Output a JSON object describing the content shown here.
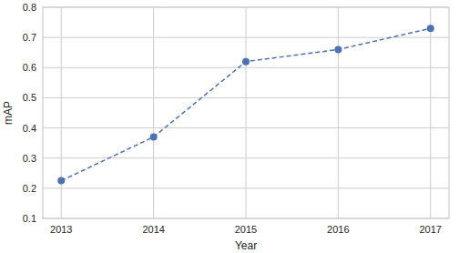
{
  "chart_data": {
    "type": "line",
    "x_label": "Year",
    "y_label": "mAP",
    "x": [
      2013,
      2014,
      2015,
      2016,
      2017
    ],
    "values": [
      0.225,
      0.37,
      0.62,
      0.66,
      0.73
    ],
    "color": "#4c72b0",
    "marker": "circle",
    "line_style": "dashed",
    "xlim": [
      2012.8,
      2017.2
    ],
    "xticks": [
      2013,
      2014,
      2015,
      2016,
      2017
    ],
    "ylim": [
      0.1,
      0.8
    ],
    "yticks": [
      0.1,
      0.2,
      0.3,
      0.4,
      0.5,
      0.6,
      0.7,
      0.8
    ],
    "grid": true
  }
}
